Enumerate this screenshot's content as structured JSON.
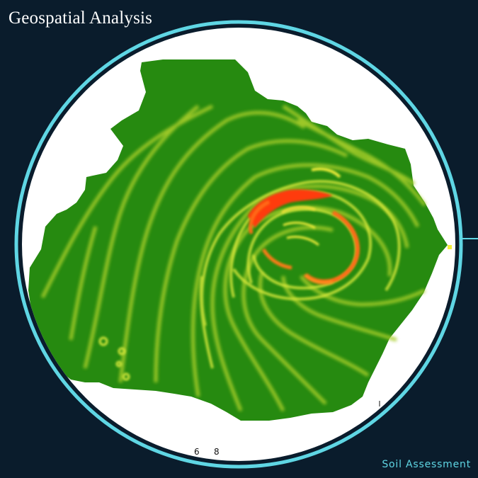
{
  "title": "Geospatial Analysis",
  "footer_label": "Soil Assessment",
  "scale_labels": [
    "6",
    "8"
  ],
  "colors": {
    "background": "#0a1c2c",
    "ring": "#5fd6e4",
    "map_base": "#2a8a12",
    "low": "#2a8a12",
    "mid": "#b7d631",
    "high_yellow": "#f4ef3a",
    "high_orange": "#ff8a1a",
    "peak_red": "#ff3a10"
  },
  "legend_gradient": [
    "low",
    "mid",
    "high_yellow",
    "high_orange",
    "peak_red"
  ]
}
